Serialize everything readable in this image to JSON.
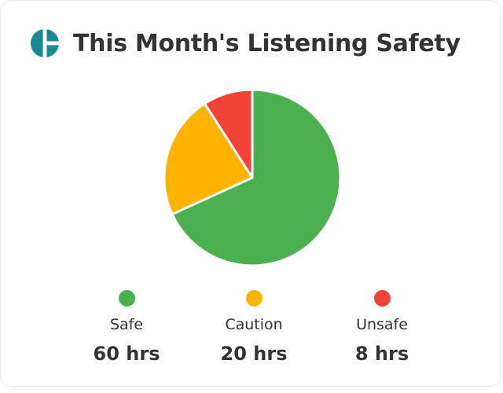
{
  "header": {
    "title": "This Month's Listening Safety",
    "logo_icon": "brand-logo-icon",
    "logo_color": "#168a96"
  },
  "chart_data": {
    "type": "pie",
    "categories": [
      "Safe",
      "Caution",
      "Unsafe"
    ],
    "values": [
      60,
      20,
      8
    ],
    "unit": "hrs",
    "colors": [
      "#4caf50",
      "#ffb300",
      "#f44336"
    ],
    "legend_position": "bottom"
  },
  "legend": {
    "items": [
      {
        "label": "Safe",
        "value": "60 hrs",
        "color": "#4caf50"
      },
      {
        "label": "Caution",
        "value": "20 hrs",
        "color": "#ffb300"
      },
      {
        "label": "Unsafe",
        "value": "8 hrs",
        "color": "#f44336"
      }
    ]
  }
}
